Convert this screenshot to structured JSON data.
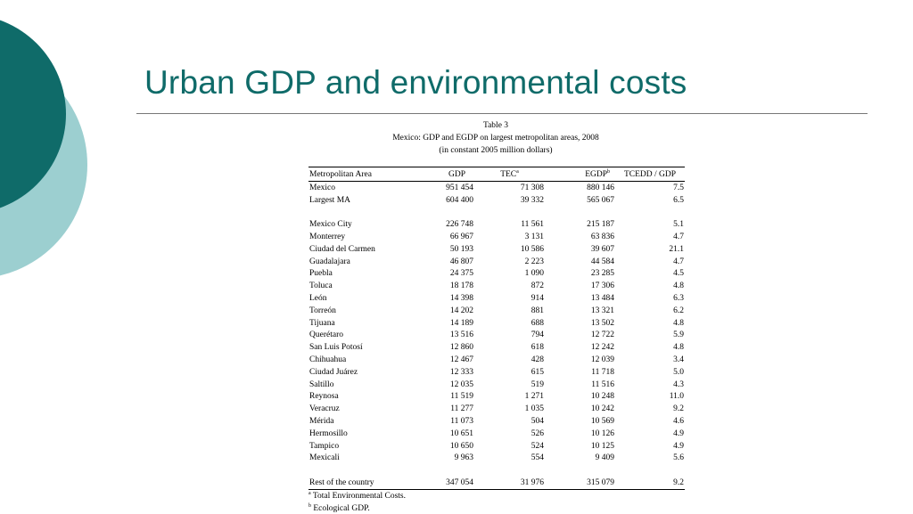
{
  "slide": {
    "title": "Urban GDP and environmental costs",
    "colors": {
      "title": "#0f6b69",
      "circle_dark": "#0f6b69",
      "circle_light": "#9ccfd0",
      "rule": "#777777"
    }
  },
  "table": {
    "caption": "Table 3",
    "subtitle": "Mexico: GDP and EGDP on largest metropolitan areas, 2008",
    "units": "(in constant 2005 million dollars)",
    "headers": {
      "area": "Metropolitan Area",
      "gdp": "GDP",
      "tec": "TEC",
      "tec_mark": "a",
      "egdp": "EGDP",
      "egdp_mark": "b",
      "ratio": "TCEDD / GDP"
    },
    "summary_rows": [
      {
        "name": "Mexico",
        "gdp": "951 454",
        "tec": "71 308",
        "egdp": "880 146",
        "ratio": "7.5"
      },
      {
        "name": "Largest MA",
        "gdp": "604 400",
        "tec": "39 332",
        "egdp": "565 067",
        "ratio": "6.5"
      }
    ],
    "rows": [
      {
        "name": "Mexico City",
        "gdp": "226 748",
        "tec": "11 561",
        "egdp": "215 187",
        "ratio": "5.1"
      },
      {
        "name": "Monterrey",
        "gdp": "66 967",
        "tec": "3 131",
        "egdp": "63 836",
        "ratio": "4.7"
      },
      {
        "name": "Ciudad del Carmen",
        "gdp": "50 193",
        "tec": "10 586",
        "egdp": "39 607",
        "ratio": "21.1"
      },
      {
        "name": "Guadalajara",
        "gdp": "46 807",
        "tec": "2 223",
        "egdp": "44 584",
        "ratio": "4.7"
      },
      {
        "name": "Puebla",
        "gdp": "24 375",
        "tec": "1 090",
        "egdp": "23 285",
        "ratio": "4.5"
      },
      {
        "name": "Toluca",
        "gdp": "18 178",
        "tec": "872",
        "egdp": "17 306",
        "ratio": "4.8"
      },
      {
        "name": "León",
        "gdp": "14 398",
        "tec": "914",
        "egdp": "13 484",
        "ratio": "6.3"
      },
      {
        "name": "Torreón",
        "gdp": "14 202",
        "tec": "881",
        "egdp": "13 321",
        "ratio": "6.2"
      },
      {
        "name": "Tijuana",
        "gdp": "14 189",
        "tec": "688",
        "egdp": "13 502",
        "ratio": "4.8"
      },
      {
        "name": "Querétaro",
        "gdp": "13 516",
        "tec": "794",
        "egdp": "12 722",
        "ratio": "5.9"
      },
      {
        "name": "San Luis Potosí",
        "gdp": "12 860",
        "tec": "618",
        "egdp": "12 242",
        "ratio": "4.8"
      },
      {
        "name": "Chihuahua",
        "gdp": "12 467",
        "tec": "428",
        "egdp": "12 039",
        "ratio": "3.4"
      },
      {
        "name": "Ciudad Juárez",
        "gdp": "12 333",
        "tec": "615",
        "egdp": "11 718",
        "ratio": "5.0"
      },
      {
        "name": "Saltillo",
        "gdp": "12 035",
        "tec": "519",
        "egdp": "11 516",
        "ratio": "4.3"
      },
      {
        "name": "Reynosa",
        "gdp": "11 519",
        "tec": "1 271",
        "egdp": "10 248",
        "ratio": "11.0"
      },
      {
        "name": "Veracruz",
        "gdp": "11 277",
        "tec": "1 035",
        "egdp": "10 242",
        "ratio": "9.2"
      },
      {
        "name": "Mérida",
        "gdp": "11 073",
        "tec": "504",
        "egdp": "10 569",
        "ratio": "4.6"
      },
      {
        "name": "Hermosillo",
        "gdp": "10 651",
        "tec": "526",
        "egdp": "10 126",
        "ratio": "4.9"
      },
      {
        "name": "Tampico",
        "gdp": "10 650",
        "tec": "524",
        "egdp": "10 125",
        "ratio": "4.9"
      },
      {
        "name": "Mexicali",
        "gdp": "9 963",
        "tec": "554",
        "egdp": "9 409",
        "ratio": "5.6"
      }
    ],
    "rest_row": {
      "name": "Rest of the country",
      "gdp": "347 054",
      "tec": "31 976",
      "egdp": "315 079",
      "ratio": "9.2"
    },
    "footnotes": [
      {
        "mark": "a",
        "text": "Total Environmental Costs."
      },
      {
        "mark": "b",
        "text": "Ecological GDP."
      }
    ]
  }
}
